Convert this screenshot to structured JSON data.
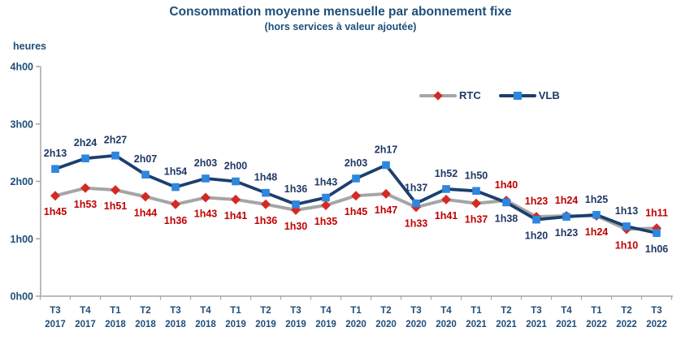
{
  "chart_data": {
    "type": "line",
    "title": "Consommation moyenne mensuelle par abonnement fixe",
    "subtitle": "(hors services à valeur ajoutée)",
    "ylabel": "heures",
    "grid": false,
    "legend_position": "inside-top-right",
    "ylim_minutes": [
      0,
      240
    ],
    "y_ticks": [
      {
        "label": "4h00",
        "minutes": 240
      },
      {
        "label": "3h00",
        "minutes": 180
      },
      {
        "label": "2h00",
        "minutes": 120
      },
      {
        "label": "1h00",
        "minutes": 60
      },
      {
        "label": "0h00",
        "minutes": 0
      }
    ],
    "categories": [
      {
        "quarter": "T3",
        "year": "2017"
      },
      {
        "quarter": "T4",
        "year": "2017"
      },
      {
        "quarter": "T1",
        "year": "2018"
      },
      {
        "quarter": "T2",
        "year": "2018"
      },
      {
        "quarter": "T3",
        "year": "2018"
      },
      {
        "quarter": "T4",
        "year": "2018"
      },
      {
        "quarter": "T1",
        "year": "2019"
      },
      {
        "quarter": "T2",
        "year": "2019"
      },
      {
        "quarter": "T3",
        "year": "2019"
      },
      {
        "quarter": "T4",
        "year": "2019"
      },
      {
        "quarter": "T1",
        "year": "2020"
      },
      {
        "quarter": "T2",
        "year": "2020"
      },
      {
        "quarter": "T3",
        "year": "2020"
      },
      {
        "quarter": "T4",
        "year": "2020"
      },
      {
        "quarter": "T1",
        "year": "2021"
      },
      {
        "quarter": "T2",
        "year": "2021"
      },
      {
        "quarter": "T3",
        "year": "2021"
      },
      {
        "quarter": "T4",
        "year": "2021"
      },
      {
        "quarter": "T1",
        "year": "2022"
      },
      {
        "quarter": "T2",
        "year": "2022"
      },
      {
        "quarter": "T3",
        "year": "2022"
      }
    ],
    "series": [
      {
        "name": "RTC",
        "marker": "diamond",
        "line_color": "#A5A5A5",
        "marker_color": "#D42A24",
        "label_color": "#C00000",
        "labels": [
          "1h45",
          "1h53",
          "1h51",
          "1h44",
          "1h36",
          "1h43",
          "1h41",
          "1h36",
          "1h30",
          "1h35",
          "1h45",
          "1h47",
          "1h33",
          "1h41",
          "1h37",
          "1h40",
          "1h23",
          "1h24",
          "1h24",
          "1h10",
          "1h11"
        ],
        "minutes": [
          105,
          113,
          111,
          104,
          96,
          103,
          101,
          96,
          90,
          95,
          105,
          107,
          93,
          101,
          97,
          100,
          83,
          84,
          84,
          70,
          71
        ]
      },
      {
        "name": "VLB",
        "marker": "square",
        "line_color": "#1C3F6E",
        "marker_color": "#2E86DE",
        "label_color": "#1F3864",
        "labels": [
          "2h13",
          "2h24",
          "2h27",
          "2h07",
          "1h54",
          "2h03",
          "2h00",
          "1h48",
          "1h36",
          "1h43",
          "2h03",
          "2h17",
          "1h37",
          "1h52",
          "1h50",
          "1h38",
          "1h20",
          "1h23",
          "1h25",
          "1h13",
          "1h06"
        ],
        "minutes": [
          133,
          144,
          147,
          127,
          114,
          123,
          120,
          108,
          96,
          103,
          123,
          137,
          97,
          112,
          110,
          98,
          80,
          83,
          85,
          73,
          66
        ]
      }
    ],
    "axis_color": "#A6A6A6",
    "tick_label_color": "#1F4E79"
  }
}
